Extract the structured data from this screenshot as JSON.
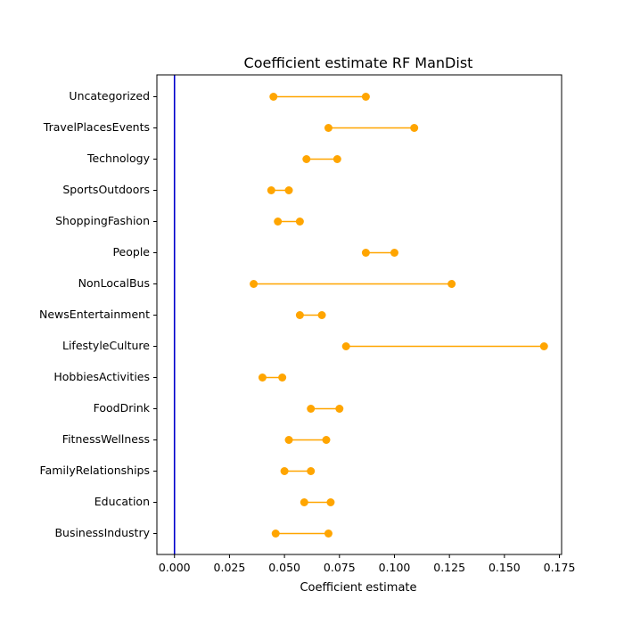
{
  "chart_data": {
    "type": "dot-range",
    "title": "Coefficient estimate RF  ManDist",
    "xlabel": "Coefficient estimate",
    "ylabel": "",
    "xlim": [
      -0.008,
      0.176
    ],
    "xticks": [
      "0.000",
      "0.025",
      "0.050",
      "0.075",
      "0.100",
      "0.125",
      "0.150",
      "0.175"
    ],
    "xtick_values": [
      0.0,
      0.025,
      0.05,
      0.075,
      0.1,
      0.125,
      0.15,
      0.175
    ],
    "reference_line": {
      "x": 0.0,
      "color": "#0000cc"
    },
    "series_color": "#ffa500",
    "grid": false,
    "categories": [
      "Uncategorized",
      "TravelPlacesEvents",
      "Technology",
      "SportsOutdoors",
      "ShoppingFashion",
      "People",
      "NonLocalBus",
      "NewsEntertainment",
      "LifestyleCulture",
      "HobbiesActivities",
      "FoodDrink",
      "FitnessWellness",
      "FamilyRelationships",
      "Education",
      "BusinessIndustry"
    ],
    "ranges": [
      [
        0.045,
        0.087
      ],
      [
        0.07,
        0.109
      ],
      [
        0.06,
        0.074
      ],
      [
        0.044,
        0.052
      ],
      [
        0.047,
        0.057
      ],
      [
        0.087,
        0.1
      ],
      [
        0.036,
        0.126
      ],
      [
        0.057,
        0.067
      ],
      [
        0.078,
        0.168
      ],
      [
        0.04,
        0.049
      ],
      [
        0.062,
        0.075
      ],
      [
        0.052,
        0.069
      ],
      [
        0.05,
        0.062
      ],
      [
        0.059,
        0.071
      ],
      [
        0.046,
        0.07
      ]
    ]
  }
}
